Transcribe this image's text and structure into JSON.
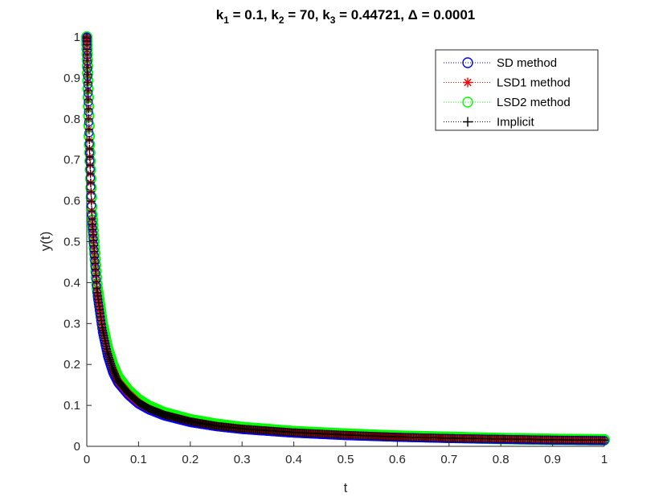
{
  "chart_data": {
    "type": "line",
    "title_parts": {
      "k": "k",
      "sub1": "1",
      "eq1": " = 0.1, ",
      "sub2": "2",
      "eq2": " = 70, ",
      "sub3": "3",
      "eq3": " = 0.44721, ",
      "delta": "Δ",
      "eq4": " = 0.0001"
    },
    "xlabel": "t",
    "ylabel": "y(t)",
    "xlim": [
      0,
      1
    ],
    "ylim": [
      0,
      1
    ],
    "xticks": [
      0,
      0.1,
      0.2,
      0.3,
      0.4,
      0.5,
      0.6,
      0.7,
      0.8,
      0.9,
      1
    ],
    "xtick_labels": [
      "0",
      "0.1",
      "0.2",
      "0.3",
      "0.4",
      "0.5",
      "0.6",
      "0.7",
      "0.8",
      "0.9",
      "1"
    ],
    "yticks": [
      0,
      0.1,
      0.2,
      0.3,
      0.4,
      0.5,
      0.6,
      0.7,
      0.8,
      0.9,
      1
    ],
    "ytick_labels": [
      "0",
      "0.1",
      "0.2",
      "0.3",
      "0.4",
      "0.5",
      "0.6",
      "0.7",
      "0.8",
      "0.9",
      "1"
    ],
    "grid": false,
    "legend_position": "top-right",
    "x": [
      0,
      0.005,
      0.01,
      0.02,
      0.03,
      0.04,
      0.05,
      0.06,
      0.08,
      0.1,
      0.12,
      0.15,
      0.2,
      0.25,
      0.3,
      0.4,
      0.5,
      0.6,
      0.7,
      0.8,
      0.9,
      1.0
    ],
    "series": [
      {
        "name": "SD method",
        "color": "#0000ff",
        "marker": "circle",
        "line": "dotted",
        "values": [
          1.0,
          0.73,
          0.55,
          0.37,
          0.28,
          0.22,
          0.18,
          0.155,
          0.125,
          0.103,
          0.089,
          0.074,
          0.058,
          0.048,
          0.041,
          0.032,
          0.026,
          0.022,
          0.019,
          0.017,
          0.015,
          0.014
        ]
      },
      {
        "name": "LSD1 method",
        "color": "#ff0000",
        "marker": "asterisk",
        "line": "dotted",
        "values": [
          1.0,
          0.74,
          0.56,
          0.38,
          0.29,
          0.23,
          0.19,
          0.16,
          0.13,
          0.107,
          0.092,
          0.077,
          0.061,
          0.05,
          0.043,
          0.034,
          0.028,
          0.023,
          0.02,
          0.018,
          0.016,
          0.015
        ]
      },
      {
        "name": "LSD2 method",
        "color": "#00ff00",
        "marker": "circle",
        "line": "dotted",
        "values": [
          1.0,
          0.75,
          0.57,
          0.39,
          0.3,
          0.24,
          0.2,
          0.17,
          0.137,
          0.114,
          0.098,
          0.082,
          0.065,
          0.054,
          0.046,
          0.036,
          0.03,
          0.025,
          0.022,
          0.019,
          0.017,
          0.016
        ]
      },
      {
        "name": "Implicit",
        "color": "#000000",
        "marker": "plus",
        "line": "dotted",
        "values": [
          1.0,
          0.74,
          0.56,
          0.38,
          0.29,
          0.23,
          0.19,
          0.16,
          0.13,
          0.107,
          0.092,
          0.077,
          0.061,
          0.05,
          0.043,
          0.034,
          0.028,
          0.023,
          0.02,
          0.018,
          0.016,
          0.015
        ]
      }
    ]
  }
}
